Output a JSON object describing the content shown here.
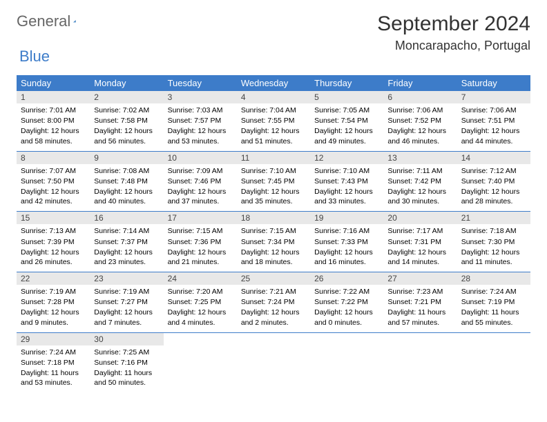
{
  "logo": {
    "text1": "General",
    "text2": "Blue",
    "icon_color": "#2e6fb5"
  },
  "header": {
    "title": "September 2024",
    "location": "Moncarapacho, Portugal"
  },
  "colors": {
    "header_bg": "#3d7cc9",
    "header_text": "#ffffff",
    "daynum_bg": "#e8e8e8",
    "row_border": "#3d7cc9",
    "page_bg": "#ffffff"
  },
  "weekdays": [
    "Sunday",
    "Monday",
    "Tuesday",
    "Wednesday",
    "Thursday",
    "Friday",
    "Saturday"
  ],
  "grid": [
    [
      {
        "n": "1",
        "sr": "7:01 AM",
        "ss": "8:00 PM",
        "dl": "12 hours and 58 minutes."
      },
      {
        "n": "2",
        "sr": "7:02 AM",
        "ss": "7:58 PM",
        "dl": "12 hours and 56 minutes."
      },
      {
        "n": "3",
        "sr": "7:03 AM",
        "ss": "7:57 PM",
        "dl": "12 hours and 53 minutes."
      },
      {
        "n": "4",
        "sr": "7:04 AM",
        "ss": "7:55 PM",
        "dl": "12 hours and 51 minutes."
      },
      {
        "n": "5",
        "sr": "7:05 AM",
        "ss": "7:54 PM",
        "dl": "12 hours and 49 minutes."
      },
      {
        "n": "6",
        "sr": "7:06 AM",
        "ss": "7:52 PM",
        "dl": "12 hours and 46 minutes."
      },
      {
        "n": "7",
        "sr": "7:06 AM",
        "ss": "7:51 PM",
        "dl": "12 hours and 44 minutes."
      }
    ],
    [
      {
        "n": "8",
        "sr": "7:07 AM",
        "ss": "7:50 PM",
        "dl": "12 hours and 42 minutes."
      },
      {
        "n": "9",
        "sr": "7:08 AM",
        "ss": "7:48 PM",
        "dl": "12 hours and 40 minutes."
      },
      {
        "n": "10",
        "sr": "7:09 AM",
        "ss": "7:46 PM",
        "dl": "12 hours and 37 minutes."
      },
      {
        "n": "11",
        "sr": "7:10 AM",
        "ss": "7:45 PM",
        "dl": "12 hours and 35 minutes."
      },
      {
        "n": "12",
        "sr": "7:10 AM",
        "ss": "7:43 PM",
        "dl": "12 hours and 33 minutes."
      },
      {
        "n": "13",
        "sr": "7:11 AM",
        "ss": "7:42 PM",
        "dl": "12 hours and 30 minutes."
      },
      {
        "n": "14",
        "sr": "7:12 AM",
        "ss": "7:40 PM",
        "dl": "12 hours and 28 minutes."
      }
    ],
    [
      {
        "n": "15",
        "sr": "7:13 AM",
        "ss": "7:39 PM",
        "dl": "12 hours and 26 minutes."
      },
      {
        "n": "16",
        "sr": "7:14 AM",
        "ss": "7:37 PM",
        "dl": "12 hours and 23 minutes."
      },
      {
        "n": "17",
        "sr": "7:15 AM",
        "ss": "7:36 PM",
        "dl": "12 hours and 21 minutes."
      },
      {
        "n": "18",
        "sr": "7:15 AM",
        "ss": "7:34 PM",
        "dl": "12 hours and 18 minutes."
      },
      {
        "n": "19",
        "sr": "7:16 AM",
        "ss": "7:33 PM",
        "dl": "12 hours and 16 minutes."
      },
      {
        "n": "20",
        "sr": "7:17 AM",
        "ss": "7:31 PM",
        "dl": "12 hours and 14 minutes."
      },
      {
        "n": "21",
        "sr": "7:18 AM",
        "ss": "7:30 PM",
        "dl": "12 hours and 11 minutes."
      }
    ],
    [
      {
        "n": "22",
        "sr": "7:19 AM",
        "ss": "7:28 PM",
        "dl": "12 hours and 9 minutes."
      },
      {
        "n": "23",
        "sr": "7:19 AM",
        "ss": "7:27 PM",
        "dl": "12 hours and 7 minutes."
      },
      {
        "n": "24",
        "sr": "7:20 AM",
        "ss": "7:25 PM",
        "dl": "12 hours and 4 minutes."
      },
      {
        "n": "25",
        "sr": "7:21 AM",
        "ss": "7:24 PM",
        "dl": "12 hours and 2 minutes."
      },
      {
        "n": "26",
        "sr": "7:22 AM",
        "ss": "7:22 PM",
        "dl": "12 hours and 0 minutes."
      },
      {
        "n": "27",
        "sr": "7:23 AM",
        "ss": "7:21 PM",
        "dl": "11 hours and 57 minutes."
      },
      {
        "n": "28",
        "sr": "7:24 AM",
        "ss": "7:19 PM",
        "dl": "11 hours and 55 minutes."
      }
    ],
    [
      {
        "n": "29",
        "sr": "7:24 AM",
        "ss": "7:18 PM",
        "dl": "11 hours and 53 minutes."
      },
      {
        "n": "30",
        "sr": "7:25 AM",
        "ss": "7:16 PM",
        "dl": "11 hours and 50 minutes."
      },
      null,
      null,
      null,
      null,
      null
    ]
  ],
  "labels": {
    "sunrise": "Sunrise:",
    "sunset": "Sunset:",
    "daylight": "Daylight:"
  }
}
